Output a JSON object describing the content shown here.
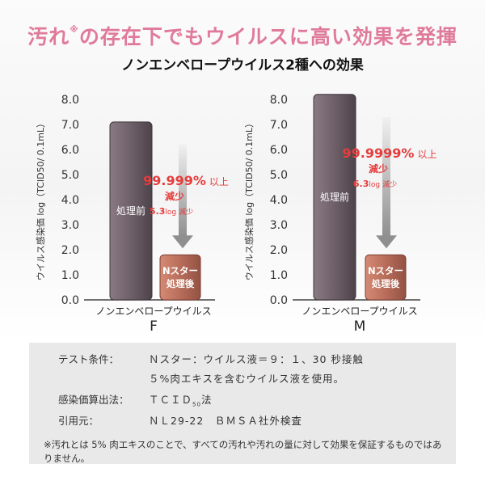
{
  "headline": {
    "main": "汚れ",
    "mark": "※",
    "rest": "の存在下でもウイルスに高い効果を発揮"
  },
  "subheadline": "ノンエンベロープウイルス2種への効果",
  "colors": {
    "headline": "#e07a9a",
    "before_bar": "#6e5f68",
    "after_bar": "#b86d5a",
    "reduction_text": "#e63c3c",
    "arrow": "#8f8f8f"
  },
  "chart_data": [
    {
      "type": "bar",
      "panel_id": "F",
      "xlabel": "ノンエンベロープウイルス",
      "sublabel": "F",
      "ylabel": "ウイルス感染価 log（TCID50/ 0.1mL）",
      "ylim": [
        0,
        8
      ],
      "yticks": [
        "0.0",
        "1.0",
        "2.0",
        "3.0",
        "4.0",
        "5.0",
        "6.0",
        "7.0",
        "8.0"
      ],
      "categories": [
        "処理前",
        "Nスター処理後"
      ],
      "values": [
        7.1,
        1.8
      ],
      "bar_labels": [
        "処理前",
        "Nスター\n処理後"
      ],
      "annotation": {
        "percent": "99.999%",
        "suffix": "以上",
        "reduce": "減少",
        "log_value": "5.3",
        "log_unit": "log",
        "log_suffix": "減少"
      }
    },
    {
      "type": "bar",
      "panel_id": "M",
      "xlabel": "ノンエンベロープウイルス",
      "sublabel": "M",
      "ylabel": "ウイルス感染価 log（TCID50/ 0.1mL）",
      "ylim": [
        0,
        8
      ],
      "yticks": [
        "0.0",
        "1.0",
        "2.0",
        "3.0",
        "4.0",
        "5.0",
        "6.0",
        "7.0",
        "8.0"
      ],
      "categories": [
        "処理前",
        "Nスター処理後"
      ],
      "values": [
        8.2,
        1.8
      ],
      "bar_labels": [
        "処理前",
        "Nスター\n処理後"
      ],
      "annotation": {
        "percent": "99.9999%",
        "suffix": "以上",
        "reduce": "減少",
        "log_value": "6.3",
        "log_unit": "log",
        "log_suffix": "減少"
      }
    }
  ],
  "notes": {
    "test_label": "テスト条件：",
    "test_value1": "Ｎスター：ウイルス液＝９：１、30 秒接触",
    "test_value2": "５%肉エキスを含むウイルス液を使用。",
    "method_label": "感染価算出法：",
    "method_value": "ＴＣＩＤ",
    "method_sub": "50",
    "method_suffix": "法",
    "ref_label": "引用元：",
    "ref_value": "ＮＬ29-22　ＢＭＳＡ社外検査",
    "footnote": "※汚れとは 5% 肉エキスのことで、すべての汚れや汚れの量に対して効果を保証するものではありません。"
  }
}
